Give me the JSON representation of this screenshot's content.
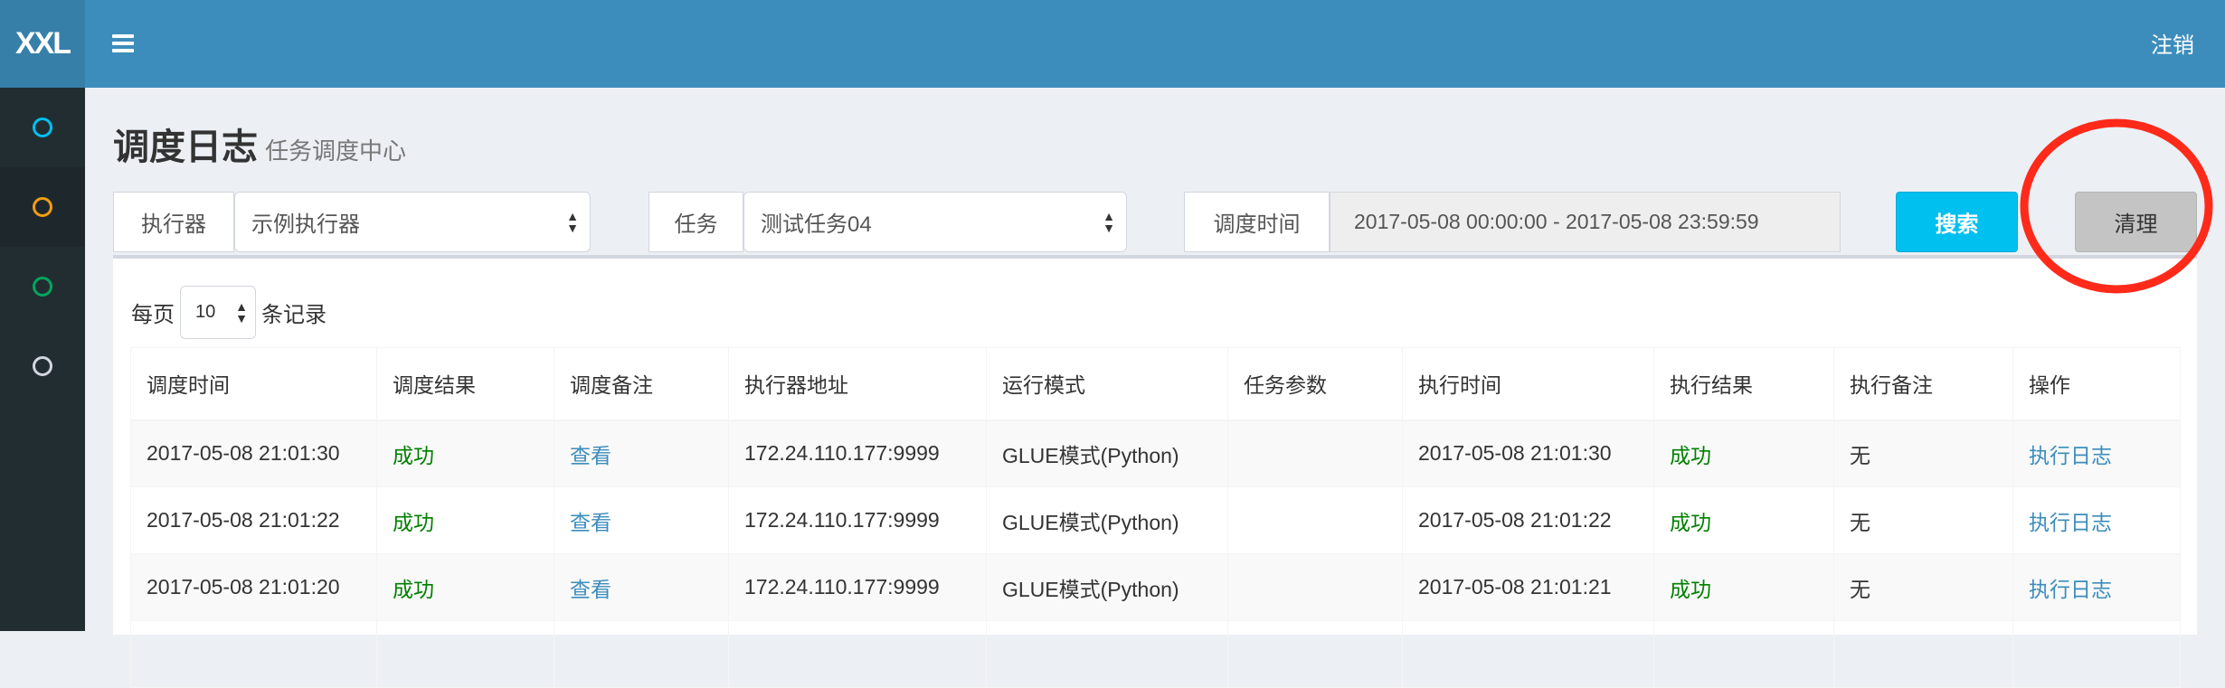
{
  "header": {
    "logo": "XXL",
    "logout_label": "注销"
  },
  "sidebar": {
    "items": [
      {
        "icon": "circle-o-icon",
        "color": "#00c0ef"
      },
      {
        "icon": "circle-o-icon",
        "color": "#f39c12"
      },
      {
        "icon": "circle-o-icon",
        "color": "#00a65a"
      },
      {
        "icon": "circle-o-icon",
        "color": "#d2d6de"
      }
    ]
  },
  "page": {
    "title": "调度日志",
    "subtitle": "任务调度中心"
  },
  "filters": {
    "executor_label": "执行器",
    "executor_value": "示例执行器",
    "job_label": "任务",
    "job_value": "测试任务04",
    "time_label": "调度时间",
    "time_value": "2017-05-08 00:00:00 - 2017-05-08 23:59:59",
    "search_label": "搜索",
    "clear_label": "清理"
  },
  "length": {
    "prefix": "每页",
    "value": "10",
    "suffix": "条记录"
  },
  "table": {
    "headers": [
      "调度时间",
      "调度结果",
      "调度备注",
      "执行器地址",
      "运行模式",
      "任务参数",
      "执行时间",
      "执行结果",
      "执行备注",
      "操作"
    ],
    "rows": [
      {
        "trigger_time": "2017-05-08 21:01:30",
        "trigger_result": "成功",
        "trigger_msg": "查看",
        "address": "172.24.110.177:9999",
        "mode": "GLUE模式(Python)",
        "param": "",
        "handle_time": "2017-05-08 21:01:30",
        "handle_result": "成功",
        "handle_msg": "无",
        "action": "执行日志"
      },
      {
        "trigger_time": "2017-05-08 21:01:22",
        "trigger_result": "成功",
        "trigger_msg": "查看",
        "address": "172.24.110.177:9999",
        "mode": "GLUE模式(Python)",
        "param": "",
        "handle_time": "2017-05-08 21:01:22",
        "handle_result": "成功",
        "handle_msg": "无",
        "action": "执行日志"
      },
      {
        "trigger_time": "2017-05-08 21:01:20",
        "trigger_result": "成功",
        "trigger_msg": "查看",
        "address": "172.24.110.177:9999",
        "mode": "GLUE模式(Python)",
        "param": "",
        "handle_time": "2017-05-08 21:01:21",
        "handle_result": "成功",
        "handle_msg": "无",
        "action": "执行日志"
      }
    ]
  },
  "colors": {
    "header": "#3c8dbc",
    "sidebar": "#222d32",
    "success": "#008000",
    "link": "#3c8dbc",
    "search_button": "#00c0ef",
    "annotation": "#ff2a1a"
  }
}
